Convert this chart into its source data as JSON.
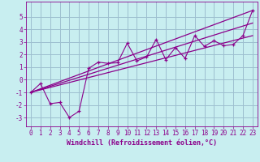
{
  "bg_color": "#c8eef0",
  "grid_color": "#9dbfcf",
  "line_color": "#8b008b",
  "xlabel": "Windchill (Refroidissement éolien,°C)",
  "xlabel_fontsize": 6,
  "tick_fontsize": 5.5,
  "xlim": [
    -0.5,
    23.5
  ],
  "ylim": [
    -3.7,
    6.2
  ],
  "yticks": [
    -3,
    -2,
    -1,
    0,
    1,
    2,
    3,
    4,
    5
  ],
  "xticks": [
    0,
    1,
    2,
    3,
    4,
    5,
    6,
    7,
    8,
    9,
    10,
    11,
    12,
    13,
    14,
    15,
    16,
    17,
    18,
    19,
    20,
    21,
    22,
    23
  ],
  "scatter_x": [
    0,
    1,
    2,
    3,
    4,
    5,
    6,
    7,
    8,
    9,
    10,
    11,
    12,
    13,
    14,
    15,
    16,
    17,
    18,
    19,
    20,
    21,
    22,
    23
  ],
  "scatter_y": [
    -1.0,
    -0.3,
    -1.9,
    -1.8,
    -3.0,
    -2.5,
    0.9,
    1.4,
    1.3,
    1.35,
    2.9,
    1.5,
    1.8,
    3.2,
    1.6,
    2.55,
    1.7,
    3.5,
    2.65,
    3.1,
    2.7,
    2.8,
    3.5,
    5.5
  ],
  "line1_x": [
    0,
    23
  ],
  "line1_y": [
    -1.0,
    5.5
  ],
  "line2_x": [
    0,
    23
  ],
  "line2_y": [
    -1.0,
    3.5
  ],
  "line3_x": [
    0,
    23
  ],
  "line3_y": [
    -1.0,
    4.5
  ]
}
